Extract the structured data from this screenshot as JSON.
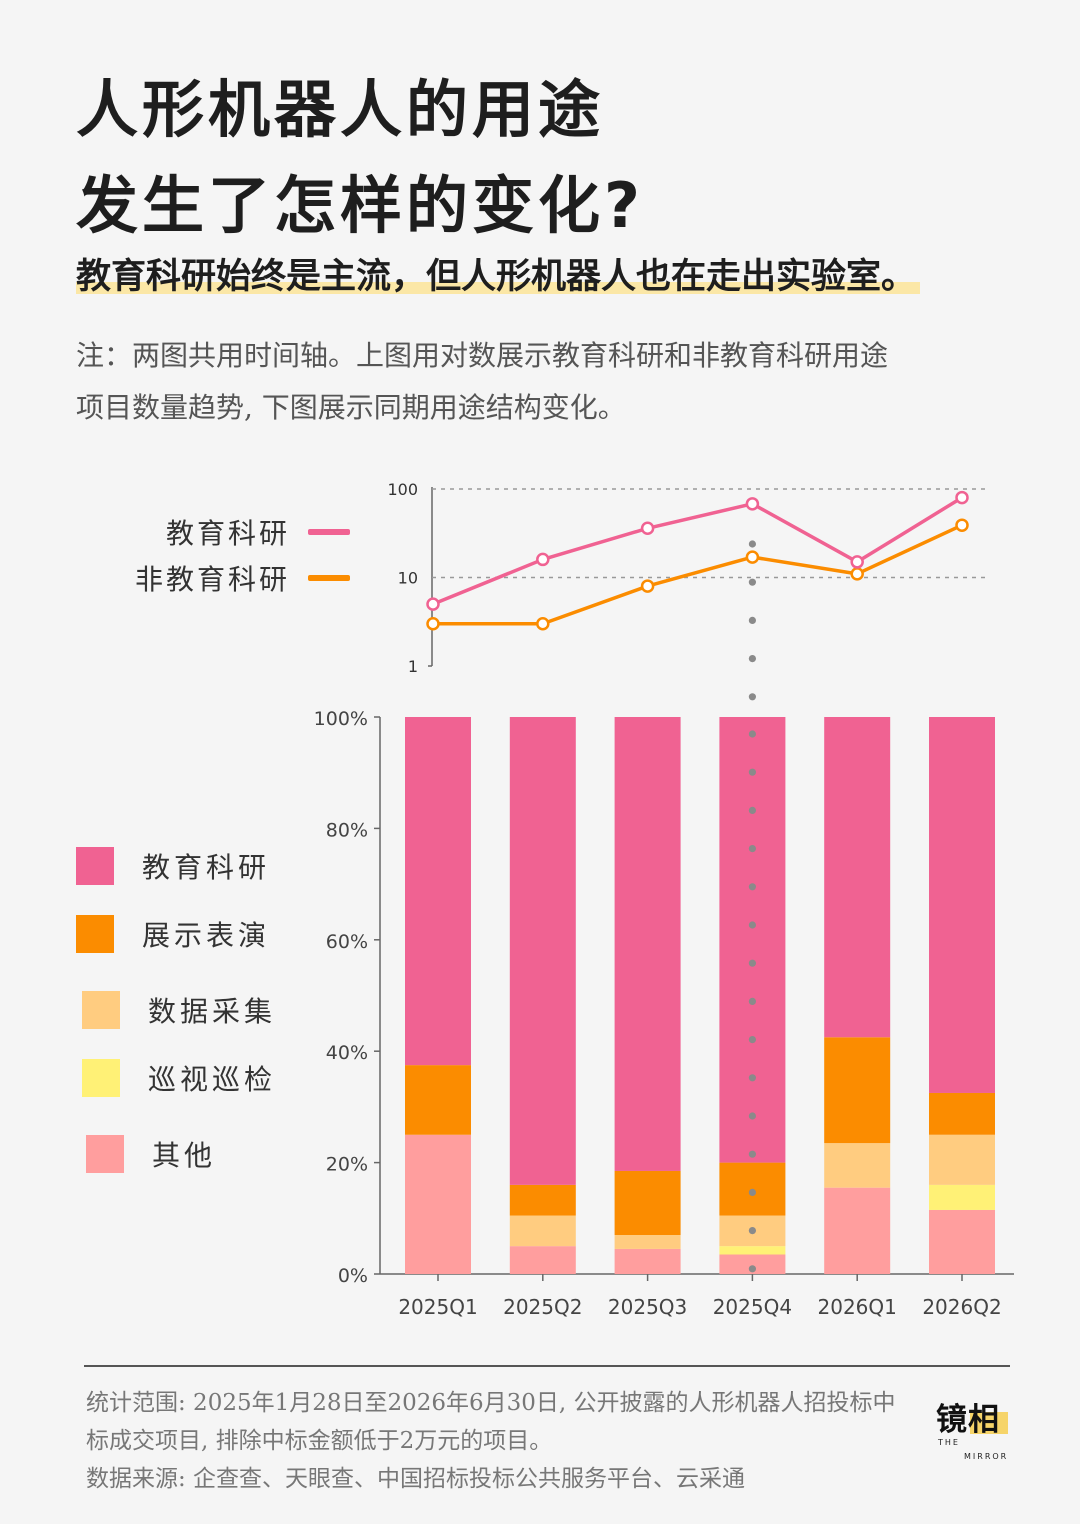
{
  "title": {
    "line1": "人形机器人的用途",
    "line2": "发生了怎样的变化?"
  },
  "subtitle": "教育科研始终是主流，但人形机器人也在走出实验室。",
  "note": {
    "line1": "注：两图共用时间轴。上图用对数展示教育科研和非教育科研用途",
    "line2": "项目数量趋势, 下图展示同期用途结构变化。"
  },
  "legend_top": [
    {
      "label": "教育科研",
      "color": "#f06292"
    },
    {
      "label": "非教育科研",
      "color": "#fb8c00"
    }
  ],
  "legend_bottom": [
    {
      "label": "教育科研",
      "color": "#f06292"
    },
    {
      "label": "展示表演",
      "color": "#fb8c00"
    },
    {
      "label": "数据采集",
      "color": "#ffcc80"
    },
    {
      "label": "巡视巡检",
      "color": "#fff176"
    },
    {
      "label": "其他",
      "color": "#ff9e9e"
    }
  ],
  "chart_data": [
    {
      "type": "line",
      "scale": "log",
      "x": [
        "2025Q1",
        "2025Q2",
        "2025Q3",
        "2025Q4",
        "2026Q1",
        "2026Q2"
      ],
      "yticks": [
        "1",
        "10",
        "100"
      ],
      "ylim": [
        1,
        100
      ],
      "grid_lines_at": [
        10,
        100
      ],
      "series": [
        {
          "name": "教育科研",
          "color": "#f06292",
          "values": [
            5,
            16,
            36,
            68,
            15,
            80
          ]
        },
        {
          "name": "非教育科研",
          "color": "#fb8c00",
          "values": [
            3,
            3,
            8,
            17,
            11,
            39
          ]
        }
      ]
    },
    {
      "type": "bar",
      "stacked": true,
      "categories": [
        "2025Q1",
        "2025Q2",
        "2025Q3",
        "2025Q4",
        "2026Q1",
        "2026Q2"
      ],
      "yticks": [
        "0%",
        "20%",
        "40%",
        "60%",
        "80%",
        "100%"
      ],
      "ylim": [
        0,
        100
      ],
      "series": [
        {
          "name": "其他",
          "color": "#ff9e9e",
          "values": [
            25,
            5,
            4.5,
            3.5,
            15.5,
            11.5
          ]
        },
        {
          "name": "巡视巡检",
          "color": "#fff176",
          "values": [
            0,
            0,
            0,
            1.5,
            0,
            4.5
          ]
        },
        {
          "name": "数据采集",
          "color": "#ffcc80",
          "values": [
            0,
            5.5,
            2.5,
            5.5,
            8,
            9
          ]
        },
        {
          "name": "展示表演",
          "color": "#fb8c00",
          "values": [
            12.5,
            5.5,
            11.5,
            9.5,
            19,
            7.5
          ]
        },
        {
          "name": "教育科研",
          "color": "#f06292",
          "values": [
            62.5,
            84,
            81.5,
            80,
            57.5,
            67.5
          ]
        }
      ],
      "highlight_category": "2025Q4"
    }
  ],
  "footer": {
    "line1": "统计范围: 2025年1月28日至2026年6月30日, 公开披露的人形机器人招投标中",
    "line2": "标成交项目, 排除中标金额低于2万元的项目。",
    "line3": "数据来源: 企查查、天眼查、中国招标投标公共服务平台、云采通"
  },
  "logo": {
    "main": "镜相",
    "sub1": "THE",
    "sub2": "MIRROR"
  }
}
